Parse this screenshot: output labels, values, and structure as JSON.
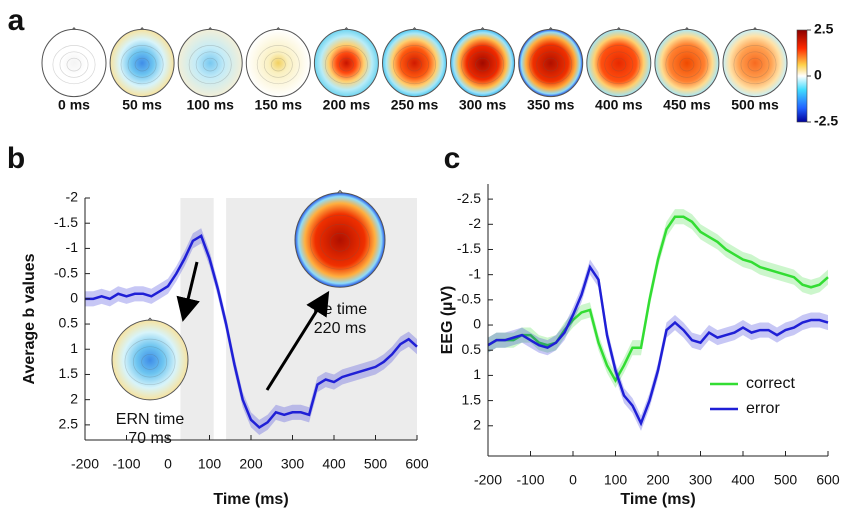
{
  "chart_data": [
    {
      "type": "topomap",
      "panel_label": "a",
      "labels": [
        "0 ms",
        "50 ms",
        "100 ms",
        "150 ms",
        "200 ms",
        "250 ms",
        "300 ms",
        "350 ms",
        "400 ms",
        "450 ms",
        "500 ms"
      ],
      "colorbar": {
        "lim": [
          -2.5,
          2.5
        ],
        "ticks": [
          2.5,
          0,
          -2.5
        ]
      }
    },
    {
      "type": "line",
      "panel_label": "b",
      "xlabel": "Time (ms)",
      "ylabel": "Average b values",
      "xlim": [
        -200,
        600
      ],
      "xticks": [
        -200,
        -100,
        0,
        100,
        200,
        300,
        400,
        500,
        600
      ],
      "ylim": [
        -2,
        2.8
      ],
      "yticks": [
        -2,
        -1.5,
        -1,
        -0.5,
        0,
        0.5,
        1,
        1.5,
        2,
        2.5
      ],
      "y_inverted": true,
      "shaded_regions": [
        [
          30,
          110
        ],
        [
          140,
          600
        ]
      ],
      "x": [
        -200,
        -180,
        -160,
        -140,
        -120,
        -100,
        -80,
        -60,
        -40,
        -20,
        0,
        20,
        40,
        60,
        80,
        100,
        120,
        140,
        160,
        180,
        200,
        220,
        240,
        260,
        280,
        300,
        320,
        340,
        360,
        380,
        400,
        420,
        440,
        460,
        480,
        500,
        520,
        540,
        560,
        580,
        600
      ],
      "series": [
        {
          "color": "#1f1fd6",
          "band": 0.15,
          "values": [
            0,
            0,
            -0.05,
            0,
            -0.1,
            -0.05,
            -0.1,
            -0.1,
            -0.05,
            -0.15,
            -0.25,
            -0.5,
            -0.8,
            -1.15,
            -1.25,
            -0.8,
            -0.2,
            0.5,
            1.3,
            2.0,
            2.4,
            2.55,
            2.45,
            2.25,
            2.3,
            2.25,
            2.25,
            2.3,
            1.7,
            1.6,
            1.65,
            1.55,
            1.5,
            1.45,
            1.4,
            1.35,
            1.25,
            1.1,
            0.9,
            0.8,
            0.95
          ]
        }
      ],
      "insets": [
        {
          "label": "ERN time",
          "time": "70 ms"
        },
        {
          "label": "Pe time",
          "time": "220 ms"
        }
      ]
    },
    {
      "type": "line",
      "panel_label": "c",
      "xlabel": "Time (ms)",
      "ylabel": "EEG (µV)",
      "xlim": [
        -200,
        600
      ],
      "xticks": [
        -200,
        -100,
        0,
        100,
        200,
        300,
        400,
        500,
        600
      ],
      "ylim": [
        -2.8,
        2.6
      ],
      "yticks": [
        -2.5,
        -2,
        -1.5,
        -1,
        -0.5,
        0,
        0.5,
        1,
        1.5,
        2
      ],
      "y_inverted": true,
      "legend": "lower right",
      "x": [
        -200,
        -180,
        -160,
        -140,
        -120,
        -100,
        -80,
        -60,
        -40,
        -20,
        0,
        20,
        40,
        60,
        80,
        100,
        120,
        140,
        160,
        180,
        200,
        220,
        240,
        260,
        280,
        300,
        320,
        340,
        360,
        380,
        400,
        420,
        440,
        460,
        480,
        500,
        520,
        540,
        560,
        580,
        600
      ],
      "series": [
        {
          "name": "correct",
          "color": "#33dd33",
          "band": 0.15,
          "values": [
            0.4,
            0.3,
            0.3,
            0.3,
            0.2,
            0.2,
            0.35,
            0.4,
            0.35,
            0.1,
            -0.1,
            -0.25,
            -0.3,
            0.35,
            0.8,
            1.1,
            0.8,
            0.45,
            0.45,
            -0.5,
            -1.3,
            -1.9,
            -2.15,
            -2.15,
            -2.05,
            -1.85,
            -1.75,
            -1.65,
            -1.5,
            -1.4,
            -1.3,
            -1.25,
            -1.15,
            -1.1,
            -1.05,
            -1.0,
            -0.95,
            -0.8,
            -0.75,
            -0.8,
            -0.95
          ]
        },
        {
          "name": "error",
          "color": "#1f1fd6",
          "band": 0.15,
          "values": [
            0.4,
            0.3,
            0.3,
            0.25,
            0.2,
            0.3,
            0.4,
            0.45,
            0.35,
            0.15,
            -0.2,
            -0.6,
            -1.15,
            -0.9,
            0.2,
            0.9,
            1.4,
            1.6,
            1.95,
            1.5,
            0.9,
            0.1,
            -0.05,
            0.1,
            0.3,
            0.35,
            0.15,
            0.25,
            0.2,
            0.15,
            0.05,
            0.15,
            0.1,
            0.1,
            0.2,
            0.1,
            0.05,
            -0.05,
            -0.1,
            -0.1,
            -0.05
          ]
        }
      ]
    }
  ]
}
